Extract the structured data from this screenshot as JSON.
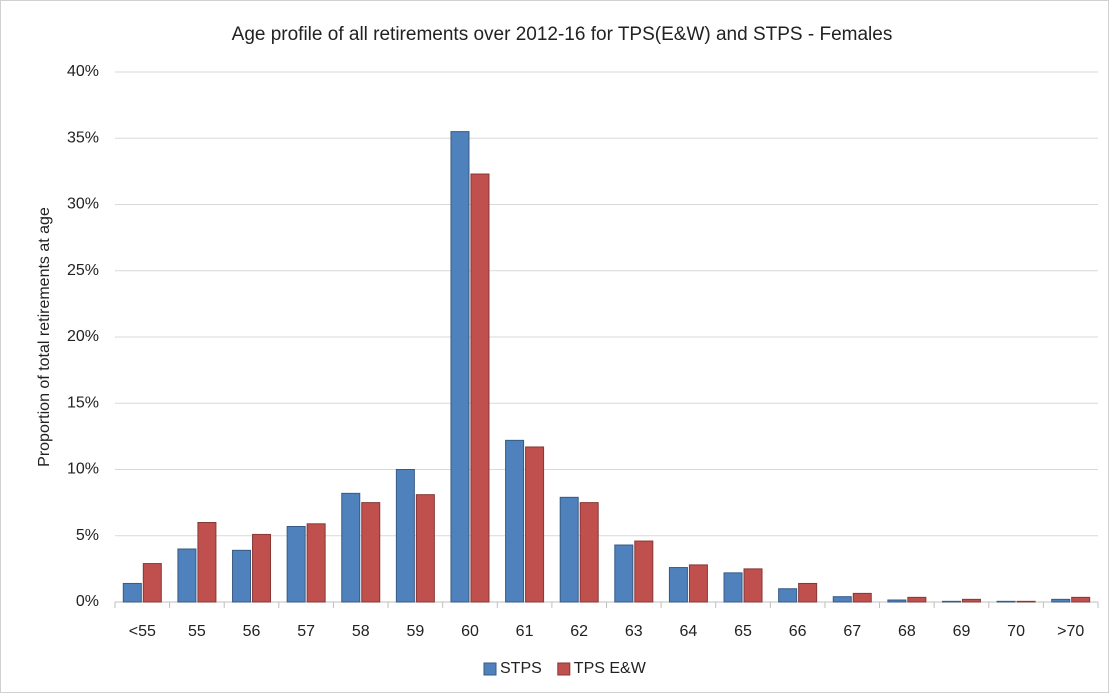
{
  "chart_data": {
    "type": "bar",
    "title": "Age profile of all retirements over 2012-16 for TPS(E&W) and STPS - Females",
    "y_label": "Proportion of total retirements at age",
    "categories": [
      "<55",
      "55",
      "56",
      "57",
      "58",
      "59",
      "60",
      "61",
      "62",
      "63",
      "64",
      "65",
      "66",
      "67",
      "68",
      "69",
      "70",
      ">70"
    ],
    "series": [
      {
        "name": "STPS",
        "color": "#4f81bd",
        "values": [
          1.4,
          4.0,
          3.9,
          5.7,
          8.2,
          10.0,
          35.5,
          12.2,
          7.9,
          4.3,
          2.6,
          2.2,
          1.0,
          0.4,
          0.15,
          0.05,
          0.05,
          0.2
        ]
      },
      {
        "name": "TPS E&W",
        "color": "#c0504d",
        "values": [
          2.9,
          6.0,
          5.1,
          5.9,
          7.5,
          8.1,
          32.3,
          11.7,
          7.5,
          4.6,
          2.8,
          2.5,
          1.4,
          0.65,
          0.35,
          0.2,
          0.05,
          0.35
        ]
      }
    ],
    "ylim": [
      0,
      40
    ],
    "yticks": [
      {
        "value": 0,
        "label": "0%"
      },
      {
        "value": 5,
        "label": "5%"
      },
      {
        "value": 10,
        "label": "10%"
      },
      {
        "value": 15,
        "label": "15%"
      },
      {
        "value": 20,
        "label": "20%"
      },
      {
        "value": 25,
        "label": "25%"
      },
      {
        "value": 30,
        "label": "30%"
      },
      {
        "value": 35,
        "label": "35%"
      },
      {
        "value": 40,
        "label": "40%"
      }
    ],
    "grid": true,
    "legend": "bottom"
  }
}
